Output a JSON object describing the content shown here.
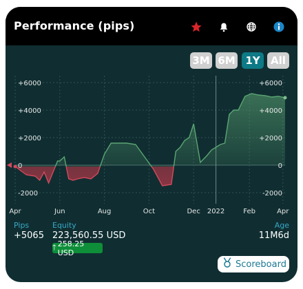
{
  "header": {
    "title": "Performance (pips)",
    "icons": [
      "star-icon",
      "bell-icon",
      "globe-icon",
      "info-icon"
    ],
    "star_color": "#d9252a"
  },
  "ranges": [
    "3M",
    "6M",
    "1Y",
    "All"
  ],
  "selected_range": "1Y",
  "chart_data": {
    "type": "area",
    "y_ticks": [
      "+6000",
      "+4000",
      "+2000",
      "0",
      "-2000"
    ],
    "x_ticks": [
      "Apr",
      "Jun",
      "Aug",
      "Oct",
      "Dec",
      "2022",
      "Feb",
      "Apr"
    ],
    "ylim": [
      -2900,
      6200
    ],
    "grid": true,
    "current_marker": "2022",
    "positive_color": "#5ba573",
    "negative_color": "#b03748",
    "x_unit_label": "month index from Apr",
    "x": [
      0,
      0.5,
      0.9,
      1.1,
      1.3,
      1.5,
      1.7,
      1.9,
      2.0,
      2.2,
      2.4,
      2.6,
      2.8,
      3.1,
      3.4,
      3.7,
      4.0,
      4.3,
      4.6,
      5.0,
      5.4,
      5.8,
      6.2,
      6.6,
      7.0,
      7.2,
      7.4,
      7.6,
      7.8,
      8.0,
      8.3,
      8.6,
      8.8,
      9.0,
      9.2,
      9.4,
      9.6,
      9.8,
      10.0,
      10.3,
      10.6,
      10.9,
      11.2,
      11.5,
      11.8,
      12.1
    ],
    "y": [
      -100,
      -700,
      -800,
      -1100,
      -500,
      -1300,
      -500,
      300,
      300,
      600,
      -1000,
      -1100,
      -1000,
      -900,
      -1000,
      -600,
      800,
      1600,
      1600,
      1600,
      1500,
      600,
      -300,
      -1500,
      -1400,
      1000,
      1300,
      1800,
      2000,
      3000,
      200,
      700,
      1100,
      1300,
      1500,
      1600,
      3700,
      4000,
      4000,
      5000,
      5200,
      5100,
      5050,
      4950,
      5000,
      4900
    ]
  },
  "stats": {
    "pips_label": "Pips",
    "pips_value": "+5065",
    "equity_label": "Equity",
    "equity_value": "223,560.55 USD",
    "equity_change": "258.25 USD",
    "age_label": "Age",
    "age_value": "11M6d"
  },
  "scoreboard_label": "Scoreboard"
}
